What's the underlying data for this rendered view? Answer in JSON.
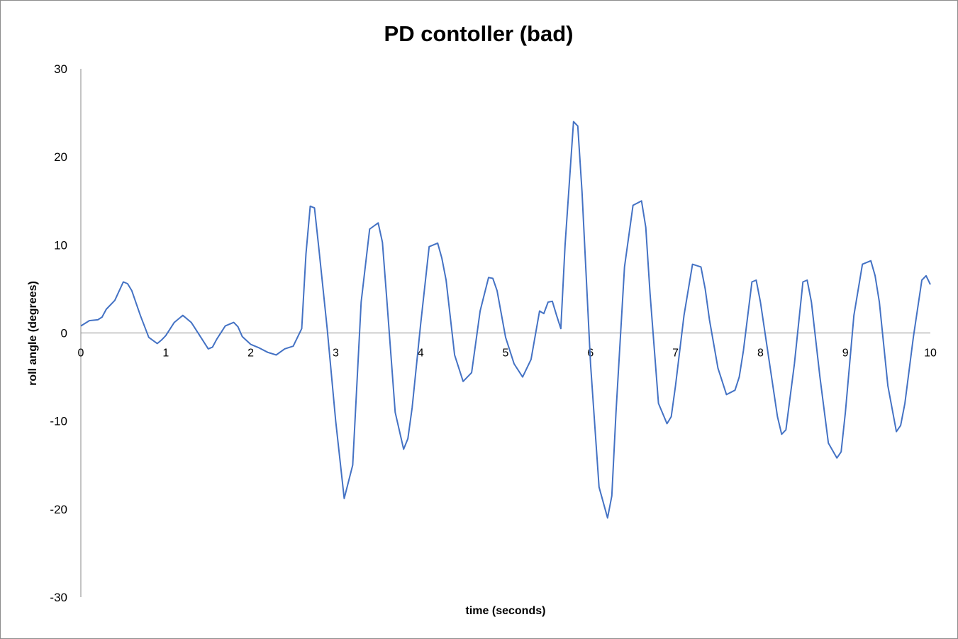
{
  "chart_data": {
    "type": "line",
    "title": "PD contoller (bad)",
    "xlabel": "time (seconds)",
    "ylabel": "roll angle (degrees)",
    "xlim": [
      0,
      10
    ],
    "ylim": [
      -30,
      30
    ],
    "x_ticks": [
      "0",
      "1",
      "2",
      "3",
      "4",
      "5",
      "6",
      "7",
      "8",
      "9",
      "10"
    ],
    "y_ticks": [
      "30",
      "20",
      "10",
      "0",
      "-10",
      "-20",
      "-30"
    ],
    "grid": false,
    "legend": "none",
    "series_color": "#4472C4",
    "series": [
      {
        "x": [
          0,
          0.1,
          0.2,
          0.25,
          0.3,
          0.4,
          0.5,
          0.55,
          0.6,
          0.7,
          0.8,
          0.9,
          0.95,
          1.0,
          1.1,
          1.2,
          1.3,
          1.4,
          1.5,
          1.55,
          1.6,
          1.7,
          1.8,
          1.85,
          1.9,
          2.0,
          2.1,
          2.2,
          2.3,
          2.4,
          2.5,
          2.6,
          2.65,
          2.7,
          2.75,
          2.8,
          2.9,
          3.0,
          3.1,
          3.2,
          3.3,
          3.4,
          3.5,
          3.55,
          3.6,
          3.7,
          3.8,
          3.85,
          3.9,
          4.0,
          4.1,
          4.2,
          4.25,
          4.3,
          4.4,
          4.5,
          4.6,
          4.7,
          4.8,
          4.85,
          4.9,
          5.0,
          5.1,
          5.2,
          5.3,
          5.4,
          5.45,
          5.5,
          5.55,
          5.6,
          5.65,
          5.7,
          5.8,
          5.85,
          5.9,
          6.0,
          6.1,
          6.2,
          6.25,
          6.3,
          6.4,
          6.5,
          6.6,
          6.65,
          6.7,
          6.8,
          6.9,
          6.95,
          7.0,
          7.1,
          7.2,
          7.3,
          7.35,
          7.4,
          7.5,
          7.6,
          7.7,
          7.75,
          7.8,
          7.9,
          7.95,
          8.0,
          8.1,
          8.2,
          8.25,
          8.3,
          8.4,
          8.5,
          8.55,
          8.6,
          8.7,
          8.8,
          8.9,
          8.95,
          9.0,
          9.1,
          9.2,
          9.3,
          9.35,
          9.4,
          9.5,
          9.6,
          9.65,
          9.7,
          9.8,
          9.9,
          9.95,
          10.0
        ],
        "y": [
          0.8,
          1.4,
          1.5,
          1.8,
          2.7,
          3.7,
          5.8,
          5.6,
          4.8,
          2.0,
          -0.5,
          -1.2,
          -0.8,
          -0.3,
          1.2,
          2.0,
          1.2,
          -0.3,
          -1.8,
          -1.6,
          -0.7,
          0.8,
          1.2,
          0.7,
          -0.4,
          -1.3,
          -1.7,
          -2.2,
          -2.5,
          -1.8,
          -1.5,
          0.5,
          9.0,
          14.4,
          14.2,
          9.8,
          0.5,
          -10.0,
          -18.8,
          -15.0,
          3.5,
          11.8,
          12.5,
          10.3,
          4.0,
          -9.0,
          -13.2,
          -12.0,
          -8.5,
          1.0,
          9.8,
          10.2,
          8.5,
          6.0,
          -2.5,
          -5.5,
          -4.5,
          2.5,
          6.3,
          6.2,
          4.8,
          -0.5,
          -3.5,
          -5.0,
          -3.0,
          2.5,
          2.2,
          3.5,
          3.6,
          2.0,
          0.5,
          10.0,
          24.0,
          23.5,
          16.0,
          -3.5,
          -17.5,
          -21.0,
          -18.5,
          -9.0,
          7.5,
          14.5,
          15.0,
          12.0,
          4.5,
          -8.0,
          -10.3,
          -9.5,
          -6.0,
          2.0,
          7.8,
          7.5,
          5.0,
          1.5,
          -4.0,
          -7.0,
          -6.5,
          -5.0,
          -2.0,
          5.8,
          6.0,
          3.5,
          -3.0,
          -9.5,
          -11.5,
          -11.0,
          -3.5,
          5.8,
          6.0,
          3.5,
          -5.0,
          -12.5,
          -14.2,
          -13.5,
          -9.0,
          2.0,
          7.8,
          8.2,
          6.5,
          3.5,
          -6.0,
          -11.2,
          -10.5,
          -8.0,
          -0.5,
          6.0,
          6.5,
          5.5
        ]
      }
    ]
  }
}
